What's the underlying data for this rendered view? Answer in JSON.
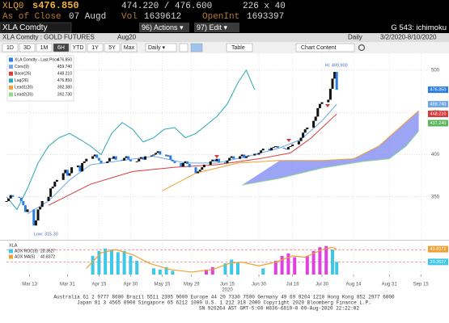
{
  "header": {
    "ticker": "XLQ0",
    "last": "s476.850",
    "bid_ask": "474.220 / 476.600",
    "size": "226 x 40",
    "as_of": "As of Close",
    "date": "07 Augd",
    "vol_label": "Vol",
    "vol": "1639612",
    "oi_label": "OpenInt",
    "oi": "1693397",
    "security": "XLA Comdty",
    "actions": "96) Actions ▾",
    "edit": "97) Edit ▾",
    "function": "G 543: ichimoku"
  },
  "subheader": {
    "name": "XLA Comdty : GOLD FUTURES",
    "contract": "Aug20",
    "period": "Daily",
    "range": "3/2/2020-8/10/2020"
  },
  "toolbar": {
    "buttons": [
      "1D",
      "3D",
      "1M",
      "6H",
      "YTD",
      "1Y",
      "5Y",
      "Max"
    ],
    "selected_index": 3,
    "frequency": "Daily ▾",
    "table": "Table",
    "chart_content": "Chart Content"
  },
  "chart_data": [
    {
      "type": "candlestick",
      "xlim": [
        0,
        200
      ],
      "ylim": [
        300,
        520
      ],
      "yticks": [
        350,
        400,
        450,
        500
      ],
      "grid": true,
      "price": {
        "name": "XLA Comdty - Last Price",
        "last_label": "476.850",
        "up_color": "#111111",
        "down_color": "#2a7de1",
        "x": [
          0,
          1,
          2,
          3,
          6,
          7,
          8,
          9,
          10,
          13,
          14,
          15,
          16,
          17,
          20,
          21,
          22,
          23,
          24,
          27,
          28,
          29,
          30,
          31,
          34,
          35,
          36,
          37,
          38,
          41,
          42,
          43,
          44,
          45,
          48,
          49,
          50,
          51,
          52,
          55,
          56,
          57,
          58,
          59,
          62,
          63,
          64,
          65,
          66,
          69,
          70,
          71,
          72,
          73,
          76,
          77,
          78,
          79,
          80,
          83,
          84,
          85,
          86,
          87,
          90,
          91,
          92,
          93,
          94,
          97,
          98,
          99,
          100,
          101,
          104,
          105,
          106,
          107,
          108,
          111,
          112,
          113,
          114,
          115,
          118,
          119,
          120,
          121,
          122,
          125,
          126,
          127,
          128,
          129,
          132,
          133,
          134,
          135,
          136,
          139,
          140,
          141,
          142,
          143,
          146,
          147,
          148,
          149,
          150,
          153,
          154,
          155,
          156,
          157
        ],
        "values": [
          345,
          348,
          352,
          350,
          349,
          345,
          340,
          332,
          335,
          316,
          322,
          335,
          338,
          345,
          350,
          360,
          362,
          368,
          370,
          378,
          382,
          375,
          378,
          385,
          387,
          380,
          390,
          392,
          395,
          398,
          400,
          396,
          393,
          390,
          392,
          396,
          395,
          398,
          394,
          393,
          396,
          398,
          394,
          392,
          392,
          395,
          397,
          394,
          398,
          399,
          400,
          402,
          404,
          400,
          398,
          399,
          394,
          392,
          390,
          386,
          390,
          392,
          389,
          385,
          378,
          380,
          382,
          385,
          388,
          392,
          394,
          392,
          395,
          391,
          390,
          393,
          396,
          398,
          395,
          398,
          400,
          396,
          398,
          399,
          401,
          400,
          402,
          405,
          407,
          405,
          408,
          409,
          410,
          408,
          407,
          406,
          409,
          410,
          412,
          416,
          420,
          426,
          430,
          432,
          440,
          445,
          455,
          460,
          462,
          465,
          478,
          490,
          498,
          476.85
        ]
      },
      "series": [
        {
          "name": "Conv(9)",
          "last_label": "459.740",
          "color": "#6fa8e8",
          "x": [
            10,
            20,
            30,
            40,
            55,
            70,
            85,
            100,
            115,
            130,
            140,
            150,
            157
          ],
          "values": [
            330,
            345,
            370,
            388,
            393,
            398,
            390,
            390,
            398,
            408,
            418,
            440,
            459.74
          ]
        },
        {
          "name": "Base(26)",
          "last_label": "448.210",
          "color": "#d83a3a",
          "x": [
            20,
            40,
            60,
            80,
            100,
            120,
            135,
            145,
            157
          ],
          "values": [
            340,
            365,
            380,
            385,
            388,
            395,
            402,
            420,
            448.21
          ]
        },
        {
          "name": "Lag(26)",
          "last_label": "476.850",
          "color": "#2aa6b4",
          "x": [
            0,
            5,
            10,
            15,
            20,
            25,
            30,
            35,
            40,
            45,
            50,
            55,
            60,
            65,
            70,
            75,
            80,
            85,
            90,
            95,
            100,
            105,
            110,
            114,
            118
          ],
          "values": [
            350,
            335,
            360,
            390,
            410,
            420,
            425,
            418,
            410,
            400,
            425,
            438,
            430,
            415,
            420,
            430,
            432,
            420,
            425,
            435,
            445,
            460,
            485,
            500,
            476.85
          ]
        },
        {
          "name": "Lead1(26)",
          "last_label": "392.380",
          "color": "#f0a030",
          "x": [
            74,
            90,
            110,
            130,
            150,
            165,
            177,
            186,
            196
          ],
          "values": [
            357,
            378,
            390,
            393,
            393,
            395,
            410,
            430,
            452
          ]
        },
        {
          "name": "Lead2(26)",
          "last_label": "392.730",
          "color": "#8fd88f",
          "x": [
            112,
            130,
            150,
            170,
            182,
            190,
            196
          ],
          "values": [
            364,
            372,
            384,
            392,
            395,
            410,
            428
          ]
        }
      ],
      "cloud_between": [
        3,
        4
      ],
      "cloud_color": "#7b86f2",
      "price_tags": [
        {
          "value": 476.85,
          "label": "476.850",
          "color": "#2a7de1"
        },
        {
          "value": 459.74,
          "label": "459.740",
          "color": "#6fa8e8"
        },
        {
          "value": 448.21,
          "label": "448.210",
          "color": "#d83a3a"
        },
        {
          "value": 437.24,
          "label": "437.240",
          "color": "#5bb55b"
        }
      ],
      "annotations": [
        {
          "x": 13,
          "value": 315.3,
          "label": "Low: 315.30"
        },
        {
          "x": 156,
          "value": 499.9,
          "label": "Hi: 499.900"
        }
      ]
    },
    {
      "type": "bar",
      "title": "XLA",
      "xlim": [
        0,
        200
      ],
      "ylim": [
        0,
        52
      ],
      "yticks": [
        20,
        40
      ],
      "grid_color": "#e05050",
      "xticks": [
        {
          "value": 11,
          "label": "Mar 13"
        },
        {
          "value": 29,
          "label": "Mar 31"
        },
        {
          "value": 44,
          "label": "Apr 15"
        },
        {
          "value": 59,
          "label": "Apr 30"
        },
        {
          "value": 74,
          "label": "May 15"
        },
        {
          "value": 88,
          "label": "May 29"
        },
        {
          "value": 105,
          "label": "Jun 15"
        },
        {
          "value": 120,
          "label": "Jun 30"
        },
        {
          "value": 136,
          "label": "Jul 16"
        },
        {
          "value": 150,
          "label": "Jul 30"
        },
        {
          "value": 165,
          "label": "Aug 14"
        },
        {
          "value": 182,
          "label": "Aug 31"
        },
        {
          "value": 197,
          "label": "Sep 15"
        }
      ],
      "year_label": {
        "value": 105,
        "label": "2020"
      },
      "series": [
        {
          "name": "ADX ROC(5)",
          "last_label": "20.3527",
          "color": "#3ec8e8",
          "x": [
            41,
            44,
            47,
            50,
            53,
            56,
            59,
            62,
            70,
            73,
            76,
            79,
            95,
            98,
            104,
            107,
            110,
            122,
            128,
            131,
            134,
            137,
            143,
            146,
            149,
            152,
            155,
            157
          ],
          "values": [
            30,
            38,
            42,
            40,
            36,
            38,
            30,
            22,
            10,
            8,
            12,
            6,
            8,
            12,
            18,
            24,
            20,
            10,
            22,
            30,
            34,
            28,
            30,
            38,
            44,
            46,
            40,
            20.3527
          ],
          "colors": [
            "#3ec8e8",
            "#3ec8e8",
            "#3ec8e8",
            "#3ec8e8",
            "#3ec8e8",
            "#3ec8e8",
            "#3ec8e8",
            "#3ec8e8",
            "#3ec8e8",
            "#3ec8e8",
            "#3ec8e8",
            "#3ec8e8",
            "#e040e0",
            "#e040e0",
            "#3ec8e8",
            "#3ec8e8",
            "#3ec8e8",
            "#3ec8e8",
            "#e040e0",
            "#e040e0",
            "#e040e0",
            "#e040e0",
            "#e040e0",
            "#e040e0",
            "#e040e0",
            "#e040e0",
            "#3ec8e8",
            "#3ec8e8"
          ]
        },
        {
          "name": "ADX MA(5)",
          "last_label": "40.8372",
          "color": "#f0a030",
          "x": [
            38,
            45,
            52,
            60,
            68,
            78,
            88,
            98,
            106,
            112,
            120,
            128,
            136,
            142,
            150,
            155,
            157
          ],
          "values": [
            10,
            35,
            40,
            32,
            18,
            8,
            4,
            8,
            18,
            20,
            14,
            20,
            30,
            28,
            40,
            44,
            40.8372
          ]
        }
      ]
    }
  ],
  "footer": {
    "lines": [
      "Australia 61 2 9777 8600 Brazil 5511 2395 9000 Europe 44 20 7330 7500 Germany 49 69 9204 1210 Hong Kong 852 2977 6000",
      "Japan 81 3 4565 8900     Singapore 65 6212 1000     U.S. 1 212 318 2000     Copyright 2020 Bloomberg Finance L.P.",
      "SN 926264 AST  GMT-5:00 H836-6819-0 09-Aug-2020 22:22:02"
    ]
  }
}
